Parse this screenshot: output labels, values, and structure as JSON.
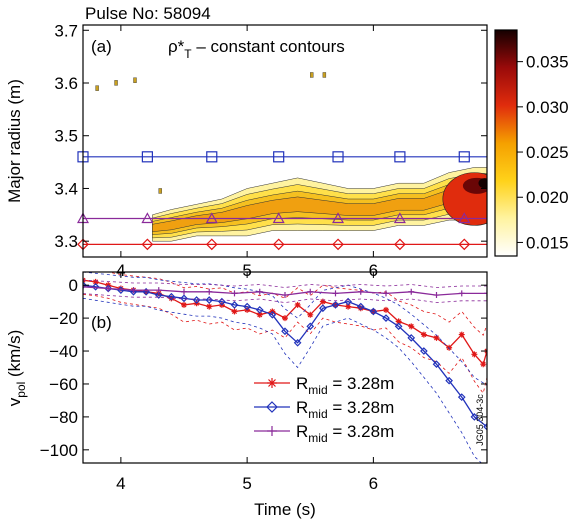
{
  "pulse_label": "Pulse No: 58094",
  "figure_id": "JG05.304-3c",
  "chart_data": [
    {
      "type": "heatmap",
      "panel_label": "(a)",
      "title": "ρ*T – constant contours",
      "title_parts": {
        "base": "ρ*",
        "sub": "T",
        "rest": " – constant contours"
      },
      "xlabel": "",
      "ylabel": "Major radius (m)",
      "xlim": [
        3.7,
        6.9
      ],
      "ylim": [
        3.27,
        3.71
      ],
      "x_ticks": [
        4,
        5,
        6
      ],
      "y_ticks": [
        3.3,
        3.4,
        3.5,
        3.6,
        3.7
      ],
      "colorbar": {
        "range": [
          0.0135,
          0.0385
        ],
        "ticks": [
          0.015,
          0.02,
          0.025,
          0.03,
          0.035
        ],
        "tick_labels": [
          "0.015",
          "0.020",
          "0.025",
          "0.030",
          "0.035"
        ],
        "colors": [
          "#ffffff",
          "#fff3a0",
          "#ffd21a",
          "#f5a000",
          "#e02c0d",
          "#9a0a0a",
          "#150000"
        ]
      },
      "contour_band": {
        "x": [
          4.25,
          4.4,
          4.6,
          4.8,
          5.0,
          5.2,
          5.4,
          5.6,
          5.8,
          6.0,
          6.2,
          6.4,
          6.6,
          6.8,
          6.9
        ],
        "y_low": [
          3.3,
          3.3,
          3.31,
          3.31,
          3.31,
          3.32,
          3.32,
          3.32,
          3.32,
          3.32,
          3.33,
          3.33,
          3.34,
          3.34,
          3.35
        ],
        "y_high": [
          3.35,
          3.36,
          3.37,
          3.38,
          3.4,
          3.41,
          3.42,
          3.41,
          3.4,
          3.4,
          3.41,
          3.41,
          3.43,
          3.44,
          3.44
        ],
        "hot_region": {
          "x": [
            6.4,
            6.9
          ],
          "r": [
            3.33,
            3.43
          ]
        }
      },
      "marker_lines": [
        {
          "r": 3.46,
          "color": "#2233bb",
          "marker": "square",
          "marker_x": [
            3.7,
            4.21,
            4.72,
            5.25,
            5.72,
            6.21,
            6.72
          ]
        },
        {
          "r": 3.343,
          "color": "#8a2a9a",
          "marker": "triangle",
          "marker_x": [
            3.7,
            4.21,
            4.72,
            5.25,
            5.72,
            6.21,
            6.72
          ]
        },
        {
          "r": 3.294,
          "color": "#e01818",
          "marker": "diamond",
          "marker_x": [
            3.7,
            4.21,
            4.72,
            5.25,
            5.72,
            6.21,
            6.72
          ]
        }
      ]
    },
    {
      "type": "line",
      "panel_label": "(b)",
      "title": "",
      "xlabel": "Time (s)",
      "ylabel": "vpol (km/s)",
      "ylabel_parts": {
        "base": "v",
        "sub": "pol",
        "rest": " (km/s)"
      },
      "xlim": [
        3.7,
        6.9
      ],
      "ylim": [
        -108,
        8
      ],
      "x_ticks": [
        4,
        5,
        6
      ],
      "y_ticks": [
        0,
        -20,
        -40,
        -60,
        -80,
        -100
      ],
      "legend_position": "lower-right",
      "series": [
        {
          "name": "Rmid = 3.28m",
          "name_parts": {
            "base": "R",
            "sub": "mid",
            "rest": " = 3.28m"
          },
          "color": "#e01818",
          "marker": "star",
          "x": [
            3.7,
            3.8,
            3.9,
            4.0,
            4.1,
            4.2,
            4.3,
            4.4,
            4.5,
            4.6,
            4.7,
            4.8,
            4.9,
            5.0,
            5.1,
            5.2,
            5.3,
            5.4,
            5.5,
            5.6,
            5.7,
            5.8,
            5.9,
            6.0,
            6.1,
            6.2,
            6.3,
            6.4,
            6.5,
            6.6,
            6.7,
            6.8,
            6.87,
            6.9
          ],
          "y": [
            3,
            2,
            0,
            -2,
            -3,
            -4,
            -5,
            -8,
            -12,
            -11,
            -13,
            -12,
            -16,
            -15,
            -18,
            -16,
            -20,
            -12,
            -18,
            -10,
            -12,
            -13,
            -14,
            -16,
            -15,
            -22,
            -25,
            -30,
            -32,
            -38,
            -30,
            -42,
            -48,
            -40
          ]
        },
        {
          "name": "Rmid = 3.28m",
          "name_parts": {
            "base": "R",
            "sub": "mid",
            "rest": " = 3.28m"
          },
          "color": "#2233bb",
          "marker": "diamond",
          "x": [
            3.7,
            3.8,
            3.9,
            4.0,
            4.1,
            4.2,
            4.3,
            4.4,
            4.5,
            4.6,
            4.7,
            4.8,
            4.9,
            5.0,
            5.1,
            5.2,
            5.3,
            5.4,
            5.5,
            5.6,
            5.7,
            5.8,
            5.9,
            6.0,
            6.1,
            6.2,
            6.3,
            6.4,
            6.5,
            6.6,
            6.7,
            6.8,
            6.9
          ],
          "y": [
            0,
            -1,
            -2,
            -3,
            -4,
            -4,
            -6,
            -7,
            -8,
            -9,
            -9,
            -10,
            -12,
            -13,
            -15,
            -18,
            -28,
            -35,
            -25,
            -14,
            -12,
            -10,
            -13,
            -16,
            -20,
            -25,
            -32,
            -40,
            -48,
            -58,
            -68,
            -80,
            -86
          ]
        },
        {
          "name": "Rmid = 3.28m",
          "name_parts": {
            "base": "R",
            "sub": "mid",
            "rest": " = 3.28m"
          },
          "color": "#8a2a9a",
          "marker": "plus",
          "x": [
            3.7,
            3.9,
            4.1,
            4.3,
            4.5,
            4.7,
            4.9,
            5.1,
            5.3,
            5.5,
            5.7,
            5.9,
            6.1,
            6.3,
            6.5,
            6.7,
            6.9
          ],
          "y": [
            -1,
            -2,
            -3,
            -3,
            -4,
            -4,
            -5,
            -4,
            -6,
            -4,
            -5,
            -4,
            -5,
            -4,
            -6,
            -5,
            -5
          ]
        }
      ]
    }
  ]
}
